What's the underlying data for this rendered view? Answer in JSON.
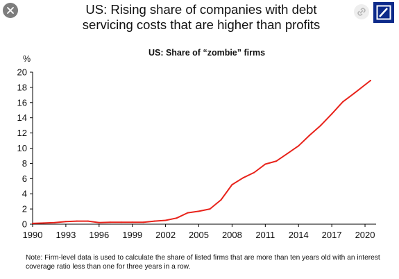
{
  "header": {
    "title_line1": "US: Rising share of companies with debt",
    "title_line2": "servicing costs that are higher than profits",
    "close_icon": "close-icon",
    "share_icon": "link-icon",
    "logo": "deutsche-bank-logo"
  },
  "colors": {
    "line": "#e8231b",
    "axis": "#000000",
    "logo_bg": "#0d2a8a",
    "close_bg": "#7d7d7d"
  },
  "chart_data": {
    "type": "line",
    "title": "US: Share of “zombie” firms",
    "ylabel": "%",
    "xlabel": "",
    "ylim": [
      0,
      20
    ],
    "yticks": [
      0,
      2,
      4,
      6,
      8,
      10,
      12,
      14,
      16,
      18,
      20
    ],
    "xlim": [
      1990,
      2021
    ],
    "xticks": [
      1990,
      1993,
      1996,
      1999,
      2002,
      2005,
      2008,
      2011,
      2014,
      2017,
      2020
    ],
    "grid": false,
    "legend": "none",
    "series": [
      {
        "x": [
          1990,
          1991,
          1992,
          1993,
          1994,
          1995,
          1996,
          1997,
          1998,
          1999,
          2000,
          2001,
          2002,
          2003,
          2004,
          2005,
          2006,
          2007,
          2008,
          2009,
          2010,
          2011,
          2012,
          2013,
          2014,
          2015,
          2016,
          2017,
          2018,
          2019,
          2020.5
        ],
        "y": [
          0.1,
          0.15,
          0.2,
          0.35,
          0.4,
          0.4,
          0.2,
          0.25,
          0.25,
          0.25,
          0.25,
          0.4,
          0.5,
          0.8,
          1.5,
          1.7,
          2.0,
          3.2,
          5.2,
          6.1,
          6.8,
          7.9,
          8.3,
          9.3,
          10.3,
          11.7,
          13.0,
          14.5,
          16.1,
          17.2,
          18.9
        ]
      }
    ]
  },
  "footer": {
    "note": "Note: Firm-level data is used to calculate the share of listed firms that are more than ten years old with an interest coverage ratio less than one for three years in a row."
  }
}
